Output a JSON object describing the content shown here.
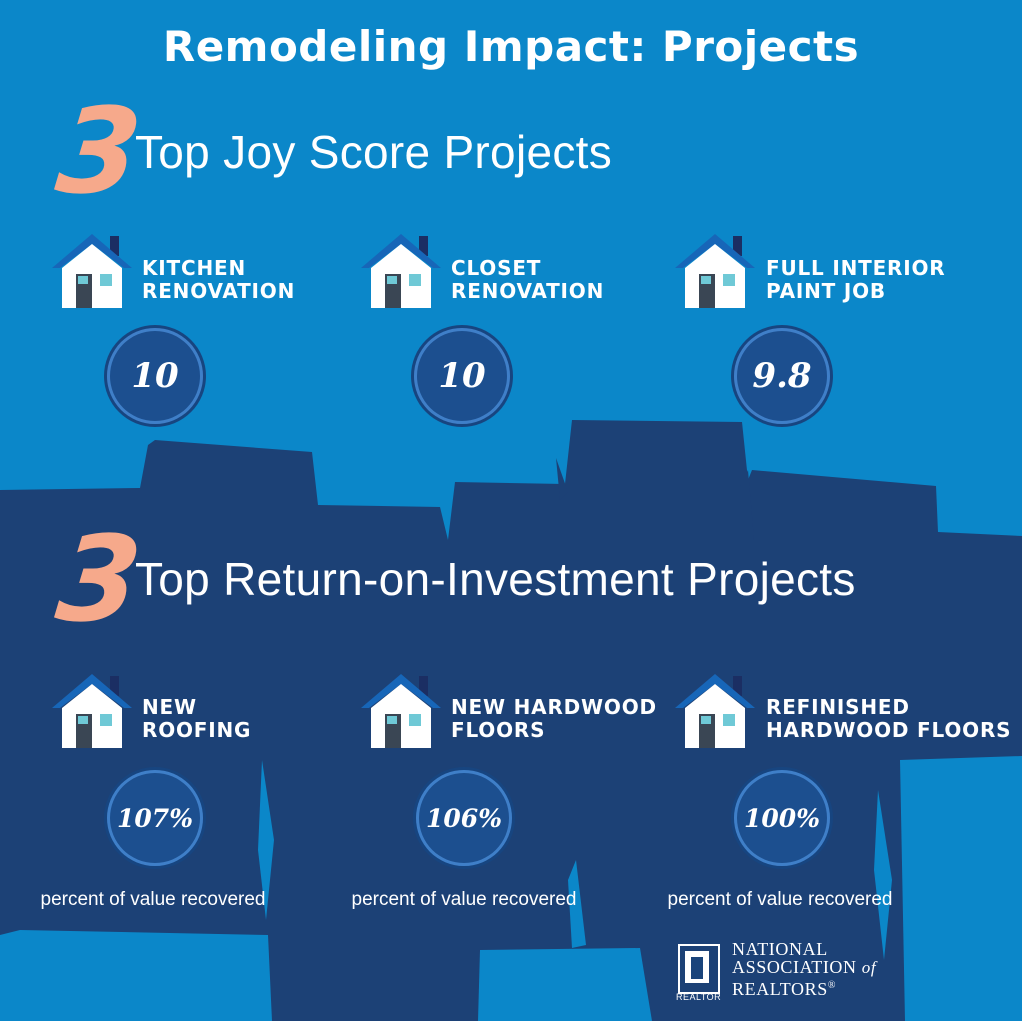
{
  "title": "Remodeling Impact: Projects",
  "colors": {
    "background": "#0b87c9",
    "skyline": "#1c4176",
    "accent_number": "#f6a98b",
    "badge": "#1c4f8f"
  },
  "joy": {
    "number": "3",
    "heading": "Top Joy Score Projects",
    "projects": [
      {
        "line1": "Kitchen",
        "line2": "Renovation",
        "score": "10",
        "icon": "house-icon"
      },
      {
        "line1": "Closet",
        "line2": "Renovation",
        "score": "10",
        "icon": "house-icon"
      },
      {
        "line1": "Full Interior",
        "line2": "Paint Job",
        "score": "9.8",
        "icon": "house-icon"
      }
    ]
  },
  "roi": {
    "number": "3",
    "heading": "Top Return-on-Investment Projects",
    "projects": [
      {
        "line1": "New",
        "line2": "Roofing",
        "value": "107%",
        "caption": "percent of value recovered",
        "icon": "house-icon"
      },
      {
        "line1": "New Hardwood",
        "line2": "Floors",
        "value": "106%",
        "caption": "percent of value recovered",
        "icon": "house-icon"
      },
      {
        "line1": "Refinished",
        "line2": "Hardwood Floors",
        "value": "100%",
        "caption": "percent of value recovered",
        "icon": "house-icon"
      }
    ]
  },
  "logo": {
    "line1": "NATIONAL",
    "line2a": "ASSOCIATION",
    "line2b": "of",
    "line3": "REALTORS",
    "mark": "®",
    "badge_word": "REALTOR"
  }
}
